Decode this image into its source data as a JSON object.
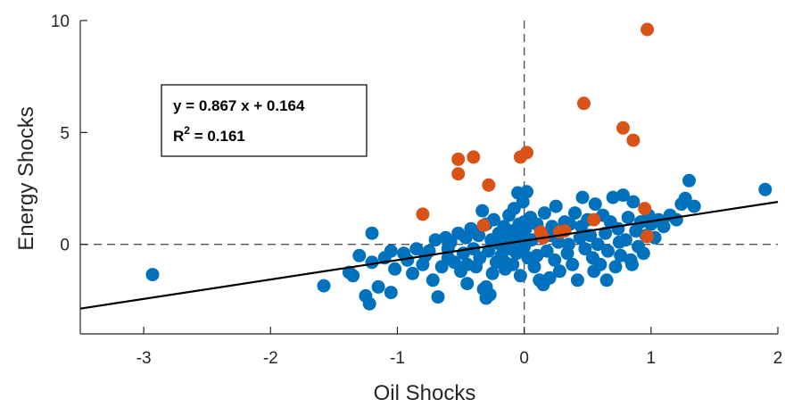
{
  "chart_data": {
    "type": "scatter",
    "xlabel": "Oil Shocks",
    "ylabel": "Energy Shocks",
    "xlim": [
      -3.5,
      2
    ],
    "ylim": [
      -4,
      10
    ],
    "xticks": [
      -3,
      -2,
      -1,
      0,
      1,
      2
    ],
    "xtick_labels": [
      "-3",
      "-2",
      "-1",
      "0",
      "1",
      "2"
    ],
    "yticks": [
      0,
      5,
      10
    ],
    "ytick_labels": [
      "0",
      "5",
      "10"
    ],
    "reference_lines": {
      "x": 0,
      "y": 0,
      "style": "dashed"
    },
    "grid": false,
    "colors": {
      "normal": "#0072BD",
      "outlier": "#D95319",
      "fit": "#000000",
      "axis": "#262626"
    },
    "fit": {
      "slope": 0.867,
      "intercept": 0.164,
      "equation_text": "y = 0.867 x + 0.164",
      "r2_text": "R",
      "r2_sup": "2",
      "r2_value": " = 0.161"
    },
    "series": [
      {
        "points": [
          [
            -2.93,
            -1.35
          ],
          [
            -1.58,
            -1.85
          ],
          [
            -1.38,
            -1.25
          ],
          [
            -1.35,
            -1.4
          ],
          [
            -1.25,
            -2.3
          ],
          [
            -1.22,
            -2.65
          ],
          [
            -1.15,
            -1.9
          ],
          [
            -1.05,
            -2.15
          ],
          [
            -1.2,
            0.5
          ],
          [
            -1.3,
            -0.5
          ],
          [
            -1.2,
            -0.8
          ],
          [
            -1.1,
            -0.6
          ],
          [
            -1.05,
            -0.3
          ],
          [
            -1.02,
            -1.1
          ],
          [
            -0.95,
            -0.4
          ],
          [
            -0.92,
            -0.7
          ],
          [
            -0.88,
            -1.3
          ],
          [
            -0.85,
            -0.2
          ],
          [
            -0.8,
            -0.9
          ],
          [
            -0.78,
            -0.5
          ],
          [
            -0.75,
            -0.3
          ],
          [
            -0.72,
            -1.6
          ],
          [
            -0.7,
            0.2
          ],
          [
            -0.68,
            -2.35
          ],
          [
            -0.65,
            -1.0
          ],
          [
            -0.62,
            0.3
          ],
          [
            -0.6,
            -0.6
          ],
          [
            -0.58,
            0.1
          ],
          [
            -0.55,
            -0.8
          ],
          [
            -0.52,
            0.5
          ],
          [
            -0.5,
            -1.2
          ],
          [
            -0.48,
            -0.4
          ],
          [
            -0.46,
            0.3
          ],
          [
            -0.45,
            -1.75
          ],
          [
            -0.42,
            0.7
          ],
          [
            -0.4,
            -0.2
          ],
          [
            -0.38,
            -1.0
          ],
          [
            -0.36,
            0.4
          ],
          [
            -0.35,
            -0.6
          ],
          [
            -0.33,
            1.5
          ],
          [
            -0.32,
            -2.0
          ],
          [
            -0.3,
            -2.4
          ],
          [
            -0.3,
            0.9
          ],
          [
            -0.28,
            -0.3
          ],
          [
            -0.27,
            -2.25
          ],
          [
            -0.26,
            0.2
          ],
          [
            -0.25,
            -1.3
          ],
          [
            -0.24,
            1.1
          ],
          [
            -0.22,
            -0.8
          ],
          [
            -0.2,
            0.5
          ],
          [
            -0.19,
            0.0
          ],
          [
            -0.18,
            -0.5
          ],
          [
            -0.16,
            0.8
          ],
          [
            -0.15,
            -1.1
          ],
          [
            -0.14,
            0.3
          ],
          [
            -0.12,
            1.3
          ],
          [
            -0.11,
            -0.2
          ],
          [
            -0.1,
            0.6
          ],
          [
            -0.09,
            -0.9
          ],
          [
            -0.08,
            1.6
          ],
          [
            -0.07,
            0.1
          ],
          [
            -0.06,
            -0.4
          ],
          [
            -0.05,
            2.3
          ],
          [
            -0.04,
            0.9
          ],
          [
            -0.03,
            -1.4
          ],
          [
            -0.02,
            0.4
          ],
          [
            -0.01,
            1.9
          ],
          [
            0.0,
            -0.1
          ],
          [
            0.01,
            0.7
          ],
          [
            0.02,
            2.35
          ],
          [
            0.03,
            -0.6
          ],
          [
            0.05,
            1.2
          ],
          [
            0.06,
            0.2
          ],
          [
            0.08,
            -1.0
          ],
          [
            0.1,
            0.9
          ],
          [
            0.12,
            -1.6
          ],
          [
            0.14,
            0.5
          ],
          [
            0.15,
            -1.8
          ],
          [
            0.16,
            1.4
          ],
          [
            0.18,
            -0.3
          ],
          [
            0.2,
            -1.5
          ],
          [
            0.22,
            0.8
          ],
          [
            0.24,
            -0.7
          ],
          [
            0.25,
            1.7
          ],
          [
            0.27,
            0.1
          ],
          [
            0.28,
            -1.2
          ],
          [
            0.3,
            0.6
          ],
          [
            0.32,
            1.0
          ],
          [
            0.34,
            -0.4
          ],
          [
            0.36,
            0.9
          ],
          [
            0.38,
            -0.9
          ],
          [
            0.4,
            1.4
          ],
          [
            0.42,
            -1.6
          ],
          [
            0.44,
            0.3
          ],
          [
            0.46,
            2.1
          ],
          [
            0.48,
            -0.2
          ],
          [
            0.5,
            1.1
          ],
          [
            0.52,
            0.4
          ],
          [
            0.54,
            -0.6
          ],
          [
            0.56,
            1.8
          ],
          [
            0.58,
            0.0
          ],
          [
            0.6,
            -0.9
          ],
          [
            0.62,
            1.3
          ],
          [
            0.64,
            0.5
          ],
          [
            0.66,
            -0.3
          ],
          [
            0.68,
            1.0
          ],
          [
            0.7,
            2.1
          ],
          [
            0.72,
            -1.0
          ],
          [
            0.74,
            0.7
          ],
          [
            0.76,
            -0.5
          ],
          [
            0.78,
            2.2
          ],
          [
            0.8,
            0.2
          ],
          [
            0.82,
            1.2
          ],
          [
            0.84,
            -0.7
          ],
          [
            0.86,
            1.9
          ],
          [
            0.88,
            0.6
          ],
          [
            0.9,
            -0.1
          ],
          [
            0.92,
            1.0
          ],
          [
            0.94,
            -0.4
          ],
          [
            0.96,
            0.4
          ],
          [
            0.98,
            1.3
          ],
          [
            1.0,
            0.9
          ],
          [
            1.03,
            0.3
          ],
          [
            1.06,
            1.1
          ],
          [
            1.1,
            0.8
          ],
          [
            1.15,
            1.3
          ],
          [
            1.2,
            1.1
          ],
          [
            1.24,
            1.8
          ],
          [
            1.27,
            2.05
          ],
          [
            1.3,
            2.85
          ],
          [
            1.34,
            1.7
          ],
          [
            1.9,
            2.45
          ],
          [
            0.55,
            -1.2
          ],
          [
            0.65,
            -1.6
          ],
          [
            -0.3,
            -1.9
          ],
          [
            -0.45,
            -0.9
          ],
          [
            0.1,
            -0.5
          ],
          [
            0.35,
            0.0
          ],
          [
            0.85,
            -0.9
          ],
          [
            -0.15,
            -0.8
          ],
          [
            0.0,
            1.0
          ],
          [
            -0.6,
            -0.2
          ],
          [
            0.2,
            0.4
          ],
          [
            -0.4,
            0.6
          ],
          [
            0.45,
            0.8
          ],
          [
            0.75,
            0.1
          ]
        ]
      },
      {
        "points": [
          [
            -0.8,
            1.35
          ],
          [
            -0.52,
            3.8
          ],
          [
            -0.52,
            3.15
          ],
          [
            -0.4,
            3.9
          ],
          [
            -0.32,
            0.85
          ],
          [
            -0.28,
            2.65
          ],
          [
            -0.03,
            3.9
          ],
          [
            0.02,
            4.1
          ],
          [
            0.13,
            0.55
          ],
          [
            0.15,
            0.3
          ],
          [
            0.28,
            0.55
          ],
          [
            0.32,
            0.6
          ],
          [
            0.47,
            6.3
          ],
          [
            0.55,
            1.1
          ],
          [
            0.78,
            5.2
          ],
          [
            0.86,
            4.65
          ],
          [
            0.95,
            1.6
          ],
          [
            0.97,
            0.35
          ],
          [
            0.97,
            9.6
          ]
        ]
      }
    ]
  }
}
